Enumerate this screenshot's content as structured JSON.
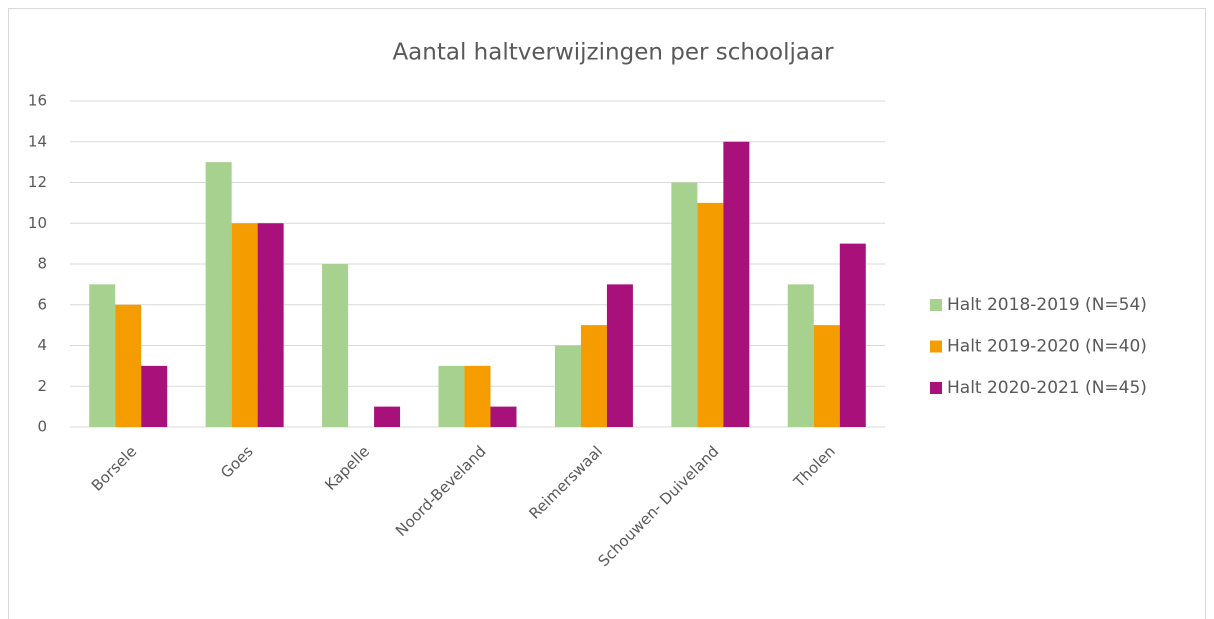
{
  "chart_data": {
    "type": "bar",
    "title": "Aantal haltverwijzingen per schooljaar",
    "categories": [
      "Borsele",
      "Goes",
      "Kapelle",
      "Noord-Beveland",
      "Reimerswaal",
      "Schouwen- Duiveland",
      "Tholen"
    ],
    "series": [
      {
        "name": "Halt 2018-2019 (N=54)",
        "color": "#a6d18e",
        "values": [
          7,
          13,
          8,
          3,
          4,
          12,
          7
        ]
      },
      {
        "name": "Halt 2019-2020 (N=40)",
        "color": "#f59c00",
        "values": [
          6,
          10,
          0,
          3,
          5,
          11,
          5
        ]
      },
      {
        "name": "Halt 2020-2021 (N=45)",
        "color": "#a8117a",
        "values": [
          3,
          10,
          1,
          1,
          7,
          14,
          9
        ]
      }
    ],
    "ylim": [
      0,
      16
    ],
    "yticks": [
      0,
      2,
      4,
      6,
      8,
      10,
      12,
      14,
      16
    ],
    "grid": true,
    "legend": "right"
  }
}
